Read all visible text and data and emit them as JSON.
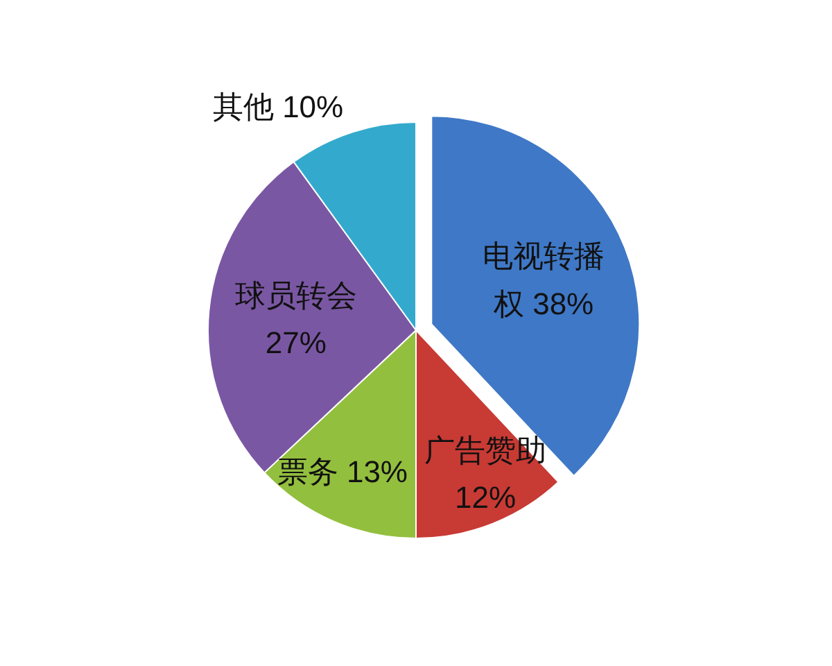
{
  "chart_data": {
    "type": "pie",
    "categories": [
      "电视转播权",
      "广告赞助",
      "票务",
      "球员转会",
      "其他"
    ],
    "values": [
      38,
      12,
      13,
      27,
      10
    ],
    "value_labels": [
      "38%",
      "12%",
      "13%",
      "27%",
      "10%"
    ],
    "colors": [
      "#3f78c6",
      "#c83a34",
      "#93bf3e",
      "#7a57a3",
      "#33aacd"
    ],
    "legend": false
  }
}
